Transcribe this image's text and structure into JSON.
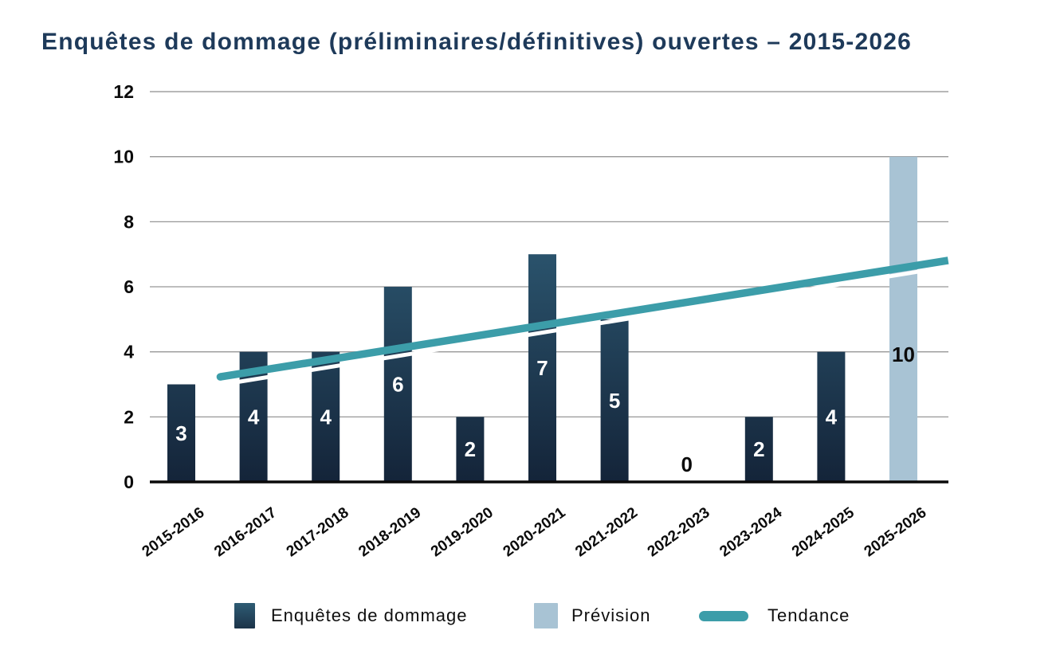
{
  "title": "Enquêtes de dommage (préliminaires/définitives) ouvertes – 2015-2026",
  "chart_data": {
    "type": "bar",
    "title": "Enquêtes de dommage (préliminaires/définitives) ouvertes – 2015-2026",
    "categories": [
      "2015-2016",
      "2016-2017",
      "2017-2018",
      "2018-2019",
      "2019-2020",
      "2020-2021",
      "2021-2022",
      "2022-2023",
      "2023-2024",
      "2024-2025",
      "2025-2026"
    ],
    "series": [
      {
        "name": "Enquêtes de dommage",
        "type": "actual",
        "values": [
          3,
          4,
          4,
          6,
          2,
          7,
          5,
          0,
          2,
          4,
          null
        ]
      },
      {
        "name": "Prévision",
        "type": "forecast",
        "values": [
          null,
          null,
          null,
          null,
          null,
          null,
          null,
          null,
          null,
          null,
          10
        ]
      }
    ],
    "values": [
      3,
      4,
      4,
      6,
      2,
      7,
      5,
      0,
      2,
      4,
      10
    ],
    "data_labels": [
      "3",
      "4",
      "4",
      "6",
      "2",
      "7",
      "5",
      "0",
      "2",
      "4",
      "10"
    ],
    "trend": {
      "name": "Tendance",
      "from": {
        "index": 0.54,
        "value": 3.23
      },
      "to": {
        "index": 10.62,
        "value": 6.81
      }
    },
    "ylim": [
      0,
      12
    ],
    "yticks": [
      0,
      2,
      4,
      6,
      8,
      10,
      12
    ],
    "grid": true,
    "legend_position": "bottom"
  },
  "legend": {
    "items": [
      {
        "label": "Enquêtes de dommage",
        "swatch": "bar-dark"
      },
      {
        "label": "Prévision",
        "swatch": "bar-light"
      },
      {
        "label": "Tendance",
        "swatch": "trend-line"
      }
    ]
  },
  "colors": {
    "title": "#1E3A5A",
    "bar_gradient_top": "#3A7490",
    "bar_gradient_bottom": "#142439",
    "forecast_bar": "#A8C3D4",
    "trend_line": "#3C9DA9",
    "trend_halo": "#FFFFFF",
    "gridline": "#979797",
    "axis_line": "#0A0A0A",
    "tick_text": "#0B0B0B",
    "label_on_dark_bar": "#FFFFFF",
    "label_dark": "#0B0B0B"
  }
}
